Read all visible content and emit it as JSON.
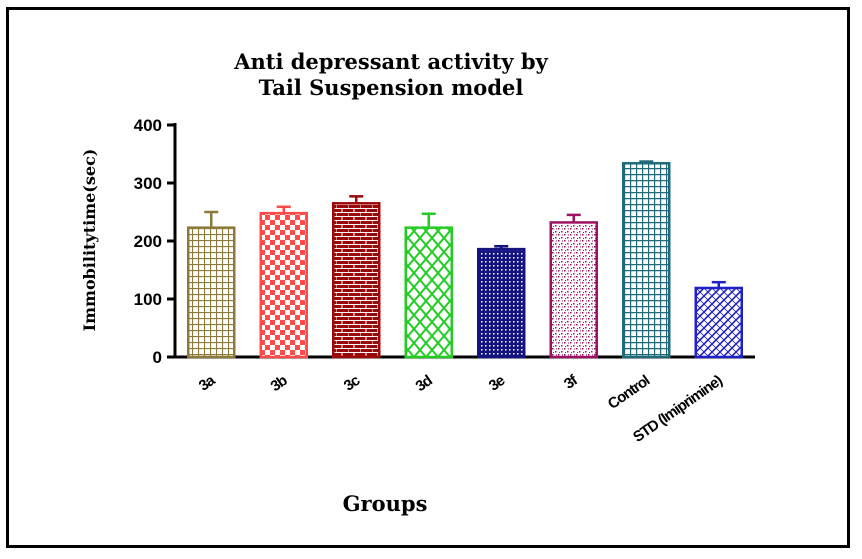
{
  "chart_data": {
    "type": "bar",
    "title_lines": [
      "Anti depressant activity by",
      "Tail Suspension  model"
    ],
    "xlabel": "Groups",
    "ylabel": "Immobilitytime(sec)",
    "ylim": [
      0,
      400
    ],
    "yticks": [
      "0",
      "100",
      "200",
      "300",
      "400"
    ],
    "categories": [
      "3a",
      "3b",
      "3c",
      "3d",
      "3e",
      "3f",
      "Control",
      "STD (Imiprimine)"
    ],
    "values": [
      223,
      248,
      265,
      223,
      186,
      232,
      334,
      119
    ],
    "errors": [
      27,
      11,
      12,
      24,
      5,
      13,
      3,
      10
    ],
    "colors": [
      "#8b7a3a",
      "#ff4a4a",
      "#9b0a0a",
      "#22cc22",
      "#141480",
      "#9e1060",
      "#1f6b7a",
      "#2020c8"
    ],
    "patterns": [
      "grid-fine",
      "checker",
      "brick",
      "diamond",
      "dots-dense",
      "speckle",
      "grid-square",
      "diagonal-weave"
    ],
    "grid": false,
    "legend": "none"
  }
}
